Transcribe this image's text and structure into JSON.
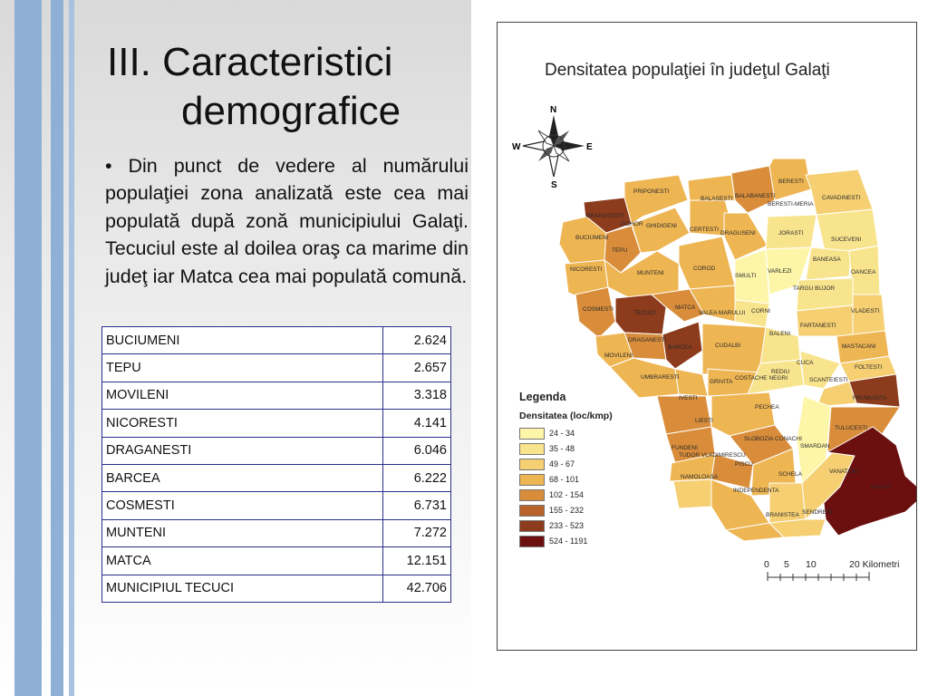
{
  "slide": {
    "title_line1": "III. Caracteristici",
    "title_line2": "demografice",
    "bullet_text": "• Din punct de vedere al numărului populaţiei zona analizată este cea mai populată după zonă municipiului Galaţi. Tecuciul este al doilea oraş ca marime din judeţ iar Matca cea mai populată comună."
  },
  "table": {
    "rows": [
      {
        "name": "BUCIUMENI",
        "value": "2.624"
      },
      {
        "name": "TEPU",
        "value": "2.657"
      },
      {
        "name": "MOVILENI",
        "value": "3.318"
      },
      {
        "name": "NICORESTI",
        "value": "4.141"
      },
      {
        "name": "DRAGANESTI",
        "value": "6.046"
      },
      {
        "name": "BARCEA",
        "value": "6.222"
      },
      {
        "name": "COSMESTI",
        "value": "6.731"
      },
      {
        "name": "MUNTENI",
        "value": "7.272"
      },
      {
        "name": "MATCA",
        "value": "12.151"
      },
      {
        "name": "MUNICIPIUL TECUCI",
        "value": "42.706"
      }
    ]
  },
  "map": {
    "title": "Densitatea populaţiei în judeţul Galaţi",
    "compass": {
      "n": "N",
      "s": "S",
      "e": "E",
      "w": "W"
    },
    "legend_title": "Legenda",
    "legend_subtitle": "Densitatea (loc/kmp)",
    "legend": [
      {
        "label": "24 - 34",
        "color": "#fdf6a8"
      },
      {
        "label": "35 - 48",
        "color": "#f9e48e"
      },
      {
        "label": "49 - 67",
        "color": "#f5cf72"
      },
      {
        "label": "68 - 101",
        "color": "#eeb553"
      },
      {
        "label": "102 - 154",
        "color": "#d98d3a"
      },
      {
        "label": "155 - 232",
        "color": "#b8622a"
      },
      {
        "label": "233 - 523",
        "color": "#8c3b1c"
      },
      {
        "label": "524 - 1191",
        "color": "#6b0f0f"
      }
    ],
    "scale_labels": [
      "0",
      "5",
      "10",
      "20 Kilometri"
    ],
    "places": [
      "BERESTI",
      "BALABANESTI",
      "CAVADINESTI",
      "PRIPONESTI",
      "BALASESTI",
      "BERESTI-MERIA",
      "BRAHASESTI",
      "GOHOR",
      "GHIDIGENI",
      "CERTESTI",
      "DRAGUSENI",
      "JORASTI",
      "SUCEVENI",
      "BUCIUMENI",
      "TEPU",
      "BANEASA",
      "NICORESTI",
      "MUNTENI",
      "COROD",
      "SMULTI",
      "VARLEZI",
      "OANCEA",
      "TARGU BUJOR",
      "COSMESTI",
      "TECUCI",
      "MATCA",
      "VALEA MARULUI",
      "CORNI",
      "VLADESTI",
      "FARTANESTI",
      "DRAGANESTI",
      "BARCEA",
      "MOVILENI",
      "CUDALBI",
      "BALENI",
      "MASTACANI",
      "FOLTESTI",
      "UMBRARESTI",
      "GRIVITA",
      "COSTACHE NEGRI",
      "REDIU",
      "CUCA",
      "SCANTEIESTI",
      "FRUMUSITA",
      "IVESTI",
      "PECHEA",
      "LIESTI",
      "SLOBOZIA CONACHI",
      "TULUCESTI",
      "FUNDENI",
      "TUDOR VLADIMIRESCU",
      "PISCU",
      "SMARDAN",
      "NAMOLOASA",
      "SCHELA",
      "VANATORI",
      "GALATI",
      "INDEPENDENTA",
      "BRANISTEA",
      "SENDRENI"
    ]
  }
}
